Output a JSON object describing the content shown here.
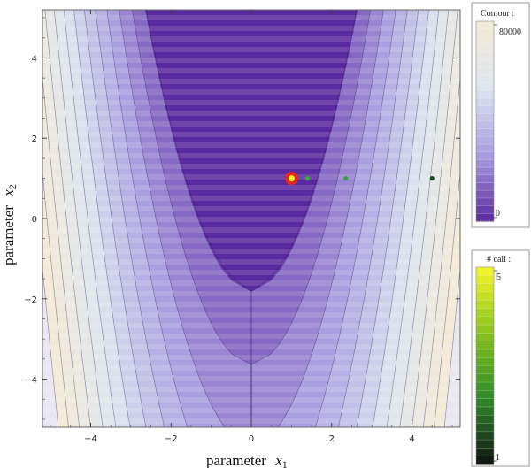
{
  "chart_data": {
    "type": "contour",
    "x": {
      "label_text": "parameter",
      "label_symbol": "x",
      "label_subscript": "1",
      "range": [
        -5.2,
        5.2
      ],
      "ticks": [
        -4,
        -2,
        0,
        2,
        4
      ],
      "tick_labels": [
        "−4",
        "−2",
        "0",
        "2",
        "4"
      ]
    },
    "y": {
      "label_text": "parameter",
      "label_symbol": "x",
      "label_subscript": "2",
      "range": [
        -5.2,
        5.2
      ],
      "ticks": [
        -4,
        -2,
        0,
        2,
        4
      ],
      "tick_labels": [
        "−4",
        "−2",
        "0",
        "2",
        "4"
      ]
    },
    "contour_legend": {
      "title": "Contour :",
      "max_label": "80000",
      "min_label": "0",
      "range": [
        0,
        80000
      ],
      "colors": [
        "#5a2aa0",
        "#a89ce0",
        "#dde5ef",
        "#f3ead6"
      ]
    },
    "calls_legend": {
      "title": "# call :",
      "max_label": "5",
      "min_label": "1",
      "range": [
        1,
        5
      ],
      "colors": [
        "#111111",
        "#2f8a2a",
        "#88c21e",
        "#f5f52a"
      ]
    },
    "points": [
      {
        "x": 1.0,
        "y": 1.0,
        "calls": 5,
        "color": "#f5f52a",
        "ring": "#e8261a"
      },
      {
        "x": 1.4,
        "y": 1.0,
        "calls": 2,
        "color": "#3aa83a"
      },
      {
        "x": 2.35,
        "y": 1.0,
        "calls": 2,
        "color": "#3a9c3a"
      },
      {
        "x": 4.5,
        "y": 1.0,
        "calls": 1,
        "color": "#1c4a1c"
      }
    ]
  }
}
